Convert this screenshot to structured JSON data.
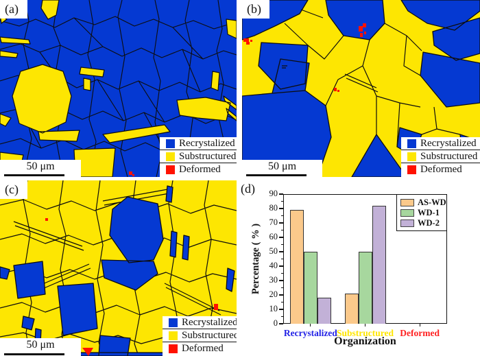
{
  "colors": {
    "blue": "#0539D2",
    "yellow": "#FDE602",
    "red": "#FF1200",
    "boundary": "#0D0D0D"
  },
  "panels": {
    "a": {
      "label": "(a)",
      "scale_bar": "50 μm"
    },
    "b": {
      "label": "(b)",
      "scale_bar": "50 μm"
    },
    "c": {
      "label": "(c)",
      "scale_bar": "50 μm"
    },
    "d": {
      "label": "(d)"
    }
  },
  "map_legend": {
    "items": [
      {
        "name": "recrystallized",
        "label": "Recrystalized"
      },
      {
        "name": "substructured",
        "label": "Substructured"
      },
      {
        "name": "deformed",
        "label": "Deformed"
      }
    ]
  },
  "chart_data": {
    "type": "bar",
    "title": "",
    "xlabel": "Organization",
    "ylabel": "Percentage ( % )",
    "ylim": [
      0,
      90
    ],
    "yticks": [
      0,
      10,
      20,
      30,
      40,
      50,
      60,
      70,
      80,
      90
    ],
    "categories": [
      "Recrystalized",
      "Substructured",
      "Deformed"
    ],
    "category_label_colors": [
      "#2222E6",
      "#FFE600",
      "#FF2222"
    ],
    "series": [
      {
        "name": "AS-WD",
        "color": "#FBC98B",
        "values": [
          79,
          21,
          0
        ]
      },
      {
        "name": "WD-1",
        "color": "#A7D79E",
        "values": [
          50,
          50,
          0
        ]
      },
      {
        "name": "WD-2",
        "color": "#C2B1D7",
        "values": [
          18,
          82,
          0
        ]
      }
    ],
    "legend_position": "top-right",
    "grid": false
  }
}
